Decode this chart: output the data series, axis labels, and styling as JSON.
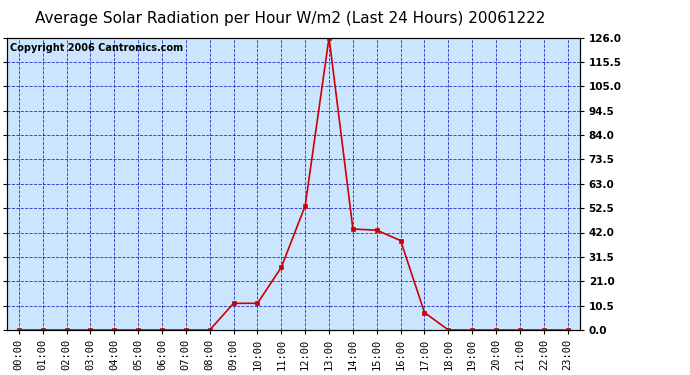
{
  "title": "Average Solar Radiation per Hour W/m2 (Last 24 Hours) 20061222",
  "copyright": "Copyright 2006 Cantronics.com",
  "hours": [
    "00:00",
    "01:00",
    "02:00",
    "03:00",
    "04:00",
    "05:00",
    "06:00",
    "07:00",
    "08:00",
    "09:00",
    "10:00",
    "11:00",
    "12:00",
    "13:00",
    "14:00",
    "15:00",
    "16:00",
    "17:00",
    "18:00",
    "19:00",
    "20:00",
    "21:00",
    "22:00",
    "23:00"
  ],
  "values": [
    0,
    0,
    0,
    0,
    0,
    0,
    0,
    0,
    0,
    11.5,
    11.5,
    27.0,
    53.5,
    126.0,
    43.5,
    43.0,
    38.5,
    7.5,
    0,
    0,
    0,
    0,
    0,
    0
  ],
  "yticks": [
    0.0,
    10.5,
    21.0,
    31.5,
    42.0,
    52.5,
    63.0,
    73.5,
    84.0,
    94.5,
    105.0,
    115.5,
    126.0
  ],
  "ytick_labels": [
    "0.0",
    "10.5",
    "21.0",
    "31.5",
    "42.0",
    "52.5",
    "63.0",
    "73.5",
    "84.0",
    "94.5",
    "105.0",
    "115.5",
    "126.0"
  ],
  "line_color": "#cc0000",
  "marker_color": "#cc0000",
  "bg_color": "#cce5ff",
  "fig_bg_color": "#ffffff",
  "grid_color": "#0000bb",
  "title_color": "#000000",
  "copyright_color": "#000000",
  "border_color": "#000000",
  "title_fontsize": 11,
  "copyright_fontsize": 7,
  "ylim": [
    0.0,
    126.0
  ],
  "tick_label_fontsize": 7.5,
  "marker_size": 3.5
}
